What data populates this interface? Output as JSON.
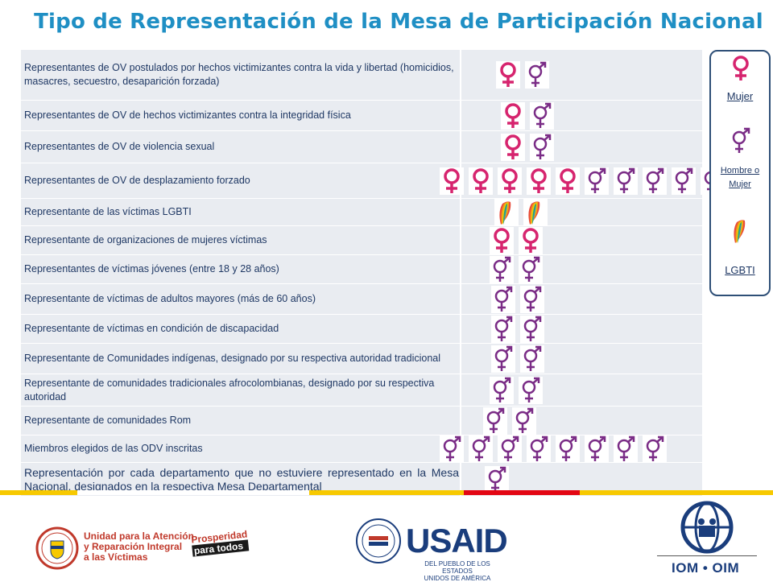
{
  "title": "Tipo de Representación de la Mesa de Participación Nacional",
  "colors": {
    "mujer": "#d6246e",
    "hombre_o_mujer": "#7a2c86",
    "title": "#1f8fc4",
    "text": "#1f3864"
  },
  "rows": [
    {
      "label": "Representantes de OV postulados por hechos victimizantes contra la vida y libertad (homicidios, masacres, secuestro, desaparición forzada)",
      "icons": [
        "mujer",
        "hombre_o_mujer"
      ]
    },
    {
      "label": "Representantes de OV de hechos victimizantes contra la integridad física",
      "icons": [
        "mujer",
        "hombre_o_mujer"
      ]
    },
    {
      "label": "Representantes de OV de violencia sexual",
      "icons": [
        "mujer",
        "hombre_o_mujer"
      ]
    },
    {
      "label": "Representantes de OV de desplazamiento forzado",
      "icons": [
        "mujer",
        "mujer",
        "mujer",
        "mujer",
        "mujer",
        "hombre_o_mujer",
        "hombre_o_mujer",
        "hombre_o_mujer",
        "hombre_o_mujer",
        "hombre_o_mujer"
      ]
    },
    {
      "label": "Representante de las víctimas LGBTI",
      "icons": [
        "lgbti",
        "lgbti"
      ]
    },
    {
      "label": "Representante de organizaciones de mujeres víctimas",
      "icons": [
        "mujer",
        "mujer"
      ]
    },
    {
      "label": "Representantes de víctimas jóvenes (entre 18 y 28 años)",
      "icons": [
        "hombre_o_mujer",
        "hombre_o_mujer"
      ]
    },
    {
      "label": "Representante de víctimas de adultos mayores (más de 60 años)",
      "icons": [
        "hombre_o_mujer",
        "hombre_o_mujer"
      ]
    },
    {
      "label": "Representante de víctimas en condición de discapacidad",
      "icons": [
        "hombre_o_mujer",
        "hombre_o_mujer"
      ]
    },
    {
      "label": "Representante de Comunidades indígenas, designado por su respectiva autoridad tradicional",
      "icons": [
        "hombre_o_mujer",
        "hombre_o_mujer"
      ]
    },
    {
      "label": "Representante de comunidades tradicionales afrocolombianas, designado por su respectiva autoridad",
      "icons": [
        "hombre_o_mujer",
        "hombre_o_mujer"
      ]
    },
    {
      "label": "Representante de comunidades Rom",
      "icons": [
        "hombre_o_mujer",
        "hombre_o_mujer"
      ]
    },
    {
      "label": "Miembros elegidos de las ODV inscritas",
      "icons": [
        "hombre_o_mujer",
        "hombre_o_mujer",
        "hombre_o_mujer",
        "hombre_o_mujer",
        "hombre_o_mujer",
        "hombre_o_mujer",
        "hombre_o_mujer",
        "hombre_o_mujer"
      ]
    },
    {
      "label": "Representación por cada departamento que no estuviere representado en la Mesa Nacional, designados en la respectiva Mesa Departamental",
      "icons": [
        "hombre_o_mujer"
      ]
    }
  ],
  "legend": {
    "mujer": "Mujer",
    "hombre_o_mujer": "Hombre o Mujer",
    "lgbti": "LGBTI"
  },
  "logos": {
    "uv_line1": "Unidad para la Atención",
    "uv_line2": "y Reparación Integral",
    "uv_line3": "a las Víctimas",
    "prosperidad1": "Prosperidad",
    "prosperidad2": "para todos",
    "usaid": "USAID",
    "usaid_sub1": "DEL PUEBLO DE LOS ESTADOS",
    "usaid_sub2": "UNIDOS DE AMÉRICA",
    "iom": "IOM • OIM"
  }
}
